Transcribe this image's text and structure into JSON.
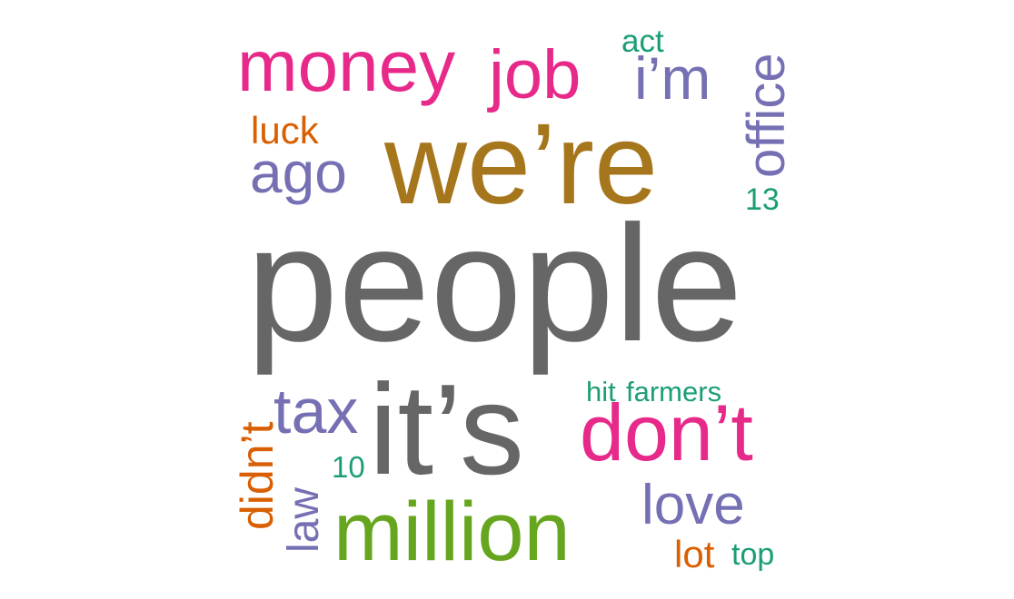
{
  "word_cloud": {
    "colors": {
      "gray": "#666666",
      "gold": "#A6761D",
      "pink": "#E7298A",
      "purple": "#7570B3",
      "orange": "#D95F02",
      "teal": "#1B9E77",
      "green": "#66A61E"
    },
    "words": [
      {
        "id": "people",
        "text": "people",
        "color": "#666666"
      },
      {
        "id": "we-re",
        "text": "we’re",
        "color": "#A6761D"
      },
      {
        "id": "it-s",
        "text": "it’s",
        "color": "#666666"
      },
      {
        "id": "million",
        "text": "million",
        "color": "#66A61E"
      },
      {
        "id": "don-t",
        "text": "don’t",
        "color": "#E7298A"
      },
      {
        "id": "money",
        "text": "money",
        "color": "#E7298A"
      },
      {
        "id": "job",
        "text": "job",
        "color": "#E7298A"
      },
      {
        "id": "ago",
        "text": "ago",
        "color": "#7570B3"
      },
      {
        "id": "tax",
        "text": "tax",
        "color": "#7570B3"
      },
      {
        "id": "love",
        "text": "love",
        "color": "#7570B3"
      },
      {
        "id": "office",
        "text": "office",
        "color": "#7570B3"
      },
      {
        "id": "i-m",
        "text": "i’m",
        "color": "#7570B3"
      },
      {
        "id": "didn-t",
        "text": "didn’t",
        "color": "#D95F02"
      },
      {
        "id": "law",
        "text": "law",
        "color": "#7570B3"
      },
      {
        "id": "luck",
        "text": "luck",
        "color": "#D95F02"
      },
      {
        "id": "lot",
        "text": "lot",
        "color": "#D95F02"
      },
      {
        "id": "hit",
        "text": "hit",
        "color": "#1B9E77"
      },
      {
        "id": "farmers",
        "text": "farmers",
        "color": "#1B9E77"
      },
      {
        "id": "act",
        "text": "act",
        "color": "#1B9E77"
      },
      {
        "id": "13",
        "text": "13",
        "color": "#1B9E77"
      },
      {
        "id": "10",
        "text": "10",
        "color": "#1B9E77"
      },
      {
        "id": "top",
        "text": "top",
        "color": "#1B9E77"
      }
    ]
  }
}
